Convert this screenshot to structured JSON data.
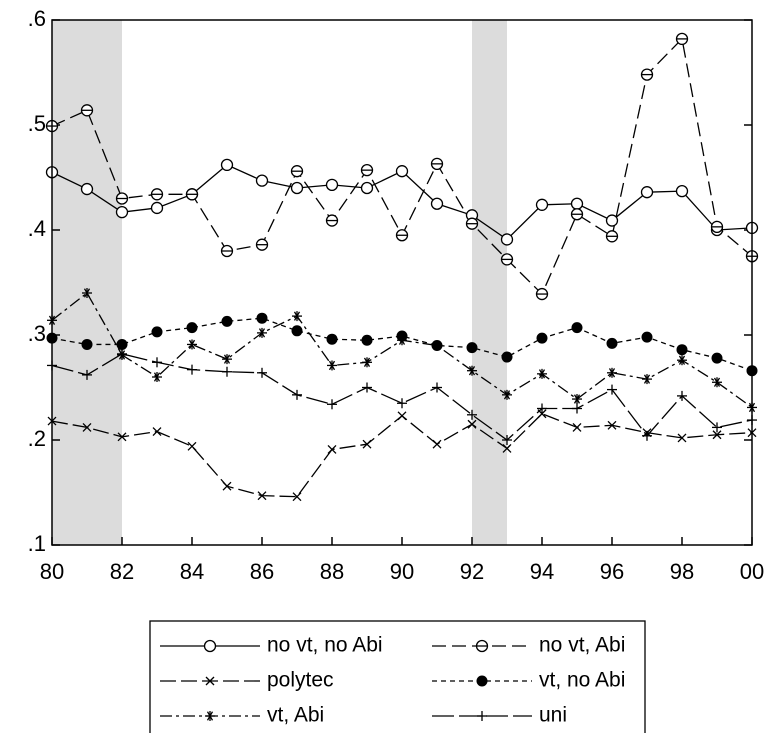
{
  "chart_data": {
    "type": "line",
    "x": [
      1980,
      1981,
      1982,
      1983,
      1984,
      1985,
      1986,
      1987,
      1988,
      1989,
      1990,
      1991,
      1992,
      1993,
      1994,
      1995,
      1996,
      1997,
      1998,
      1999,
      2000
    ],
    "xlim": [
      1980,
      2000
    ],
    "xticks": [
      {
        "value": 1980,
        "label": "80"
      },
      {
        "value": 1982,
        "label": "82"
      },
      {
        "value": 1984,
        "label": "84"
      },
      {
        "value": 1986,
        "label": "86"
      },
      {
        "value": 1988,
        "label": "88"
      },
      {
        "value": 1990,
        "label": "90"
      },
      {
        "value": 1992,
        "label": "92"
      },
      {
        "value": 1994,
        "label": "94"
      },
      {
        "value": 1996,
        "label": "96"
      },
      {
        "value": 1998,
        "label": "98"
      },
      {
        "value": 2000,
        "label": "00"
      }
    ],
    "ylim": [
      0.1,
      0.6
    ],
    "yticks": [
      {
        "value": 0.1,
        "label": ".1"
      },
      {
        "value": 0.2,
        "label": ".2"
      },
      {
        "value": 0.3,
        "label": ".3"
      },
      {
        "value": 0.4,
        "label": ".4"
      },
      {
        "value": 0.5,
        "label": ".5"
      },
      {
        "value": 0.6,
        "label": ".6"
      }
    ],
    "shaded_ranges": [
      [
        1980,
        1982
      ],
      [
        1992,
        1993
      ]
    ],
    "shade_color": "#dcdcdc",
    "legend_position": "bottom",
    "series": [
      {
        "name": "no vt, no Abi",
        "color": "#000000",
        "dash": "none",
        "marker": "open-circle",
        "values": [
          0.455,
          0.439,
          0.417,
          0.421,
          0.434,
          0.462,
          0.447,
          0.44,
          0.443,
          0.44,
          0.456,
          0.425,
          0.414,
          0.391,
          0.424,
          0.425,
          0.409,
          0.436,
          0.437,
          0.4,
          0.402
        ]
      },
      {
        "name": "vt, no Abi",
        "color": "#000000",
        "dash": "5,4",
        "marker": "filled-circle",
        "values": [
          0.297,
          0.291,
          0.291,
          0.303,
          0.307,
          0.313,
          0.316,
          0.304,
          0.296,
          0.295,
          0.299,
          0.29,
          0.288,
          0.279,
          0.297,
          0.307,
          0.292,
          0.298,
          0.286,
          0.278,
          0.266
        ]
      },
      {
        "name": "no vt, Abi",
        "color": "#000000",
        "dash": "14,6",
        "marker": "bar-circle",
        "values": [
          0.499,
          0.514,
          0.43,
          0.434,
          0.434,
          0.38,
          0.386,
          0.456,
          0.409,
          0.457,
          0.395,
          0.463,
          0.406,
          0.372,
          0.339,
          0.415,
          0.394,
          0.548,
          0.582,
          0.403,
          0.375
        ]
      },
      {
        "name": "vt, Abi",
        "color": "#000000",
        "dash": "12,4,3,4",
        "marker": "asterisk",
        "values": [
          0.314,
          0.34,
          0.281,
          0.26,
          0.291,
          0.277,
          0.302,
          0.318,
          0.271,
          0.274,
          0.295,
          0.29,
          0.266,
          0.243,
          0.263,
          0.239,
          0.264,
          0.258,
          0.276,
          0.255,
          0.231
        ]
      },
      {
        "name": "polytec",
        "color": "#000000",
        "dash": "16,5",
        "marker": "cross",
        "values": [
          0.218,
          0.212,
          0.203,
          0.208,
          0.194,
          0.156,
          0.147,
          0.146,
          0.191,
          0.196,
          0.223,
          0.196,
          0.215,
          0.192,
          0.225,
          0.212,
          0.214,
          0.207,
          0.202,
          0.205,
          0.207
        ]
      },
      {
        "name": "uni",
        "color": "#000000",
        "dash": "22,5",
        "marker": "plus",
        "values": [
          0.271,
          0.262,
          0.282,
          0.274,
          0.267,
          0.265,
          0.264,
          0.243,
          0.234,
          0.25,
          0.235,
          0.25,
          0.224,
          0.2,
          0.23,
          0.23,
          0.248,
          0.204,
          0.242,
          0.212,
          0.219
        ]
      }
    ]
  }
}
